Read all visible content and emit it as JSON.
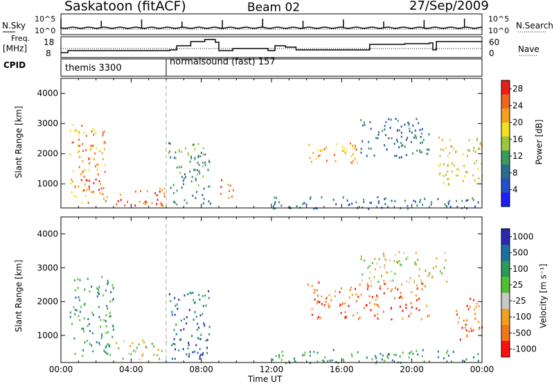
{
  "header": {
    "site": "Saskatoon (fitACF)",
    "beam": "Beam 02",
    "date": "27/Sep/2009"
  },
  "top_panels": {
    "nsky_label": "N.Sky",
    "nsearch_label": "N.Search",
    "nsky_ticks": [
      "10^5",
      "10^0"
    ],
    "nsearch_ticks": [
      "10^5",
      "10^0"
    ],
    "freq_label_1": "Freq.",
    "freq_label_2": "[MHz]",
    "freq_ticks": [
      "18",
      "8"
    ],
    "nave_label": "Nave",
    "nave_ticks": [
      "60",
      "0"
    ],
    "cpid_label": "CPID",
    "cpid_modes": [
      {
        "name": "themis 3300",
        "start": 0
      },
      {
        "name": "normalsound (fast) 157",
        "start": 6
      }
    ]
  },
  "chart_data": [
    {
      "type": "heatmap",
      "title": "",
      "xlabel": "",
      "ylabel": "Slant Range [km]",
      "xlim": [
        0,
        24
      ],
      "ylim": [
        200,
        4500
      ],
      "yticks": [
        "1000",
        "2000",
        "3000",
        "4000"
      ],
      "colorbar_label": "Power [dB]",
      "colorbar_ticks": [
        "4",
        "8",
        "12",
        "16",
        "20",
        "24",
        "28"
      ],
      "colorbar_range": [
        0,
        30
      ],
      "colors": [
        "#1e1ef5",
        "#2450c8",
        "#2a6e8c",
        "#3a9a5c",
        "#9ac83c",
        "#f0e020",
        "#f5a020",
        "#f06420",
        "#e82018"
      ],
      "regions": [
        {
          "t0": 0.5,
          "t1": 2.6,
          "r0": 400,
          "r1": 3000,
          "value": 20
        },
        {
          "t0": 1.0,
          "t1": 2.3,
          "r0": 700,
          "r1": 1200,
          "value": 28
        },
        {
          "t0": 3.0,
          "t1": 6.0,
          "r0": 300,
          "r1": 900,
          "value": 26
        },
        {
          "t0": 6.1,
          "t1": 8.5,
          "r0": 300,
          "r1": 2400,
          "value": 12
        },
        {
          "t0": 9.0,
          "t1": 9.8,
          "r0": 500,
          "r1": 1200,
          "value": 24
        },
        {
          "t0": 12.0,
          "t1": 23.8,
          "r0": 200,
          "r1": 600,
          "value": 8
        },
        {
          "t0": 14.0,
          "t1": 17.0,
          "r0": 1700,
          "r1": 2400,
          "value": 22
        },
        {
          "t0": 17.0,
          "t1": 21.0,
          "r0": 1900,
          "r1": 3200,
          "value": 8
        },
        {
          "t0": 21.5,
          "t1": 24.0,
          "r0": 1000,
          "r1": 2600,
          "value": 18
        }
      ]
    },
    {
      "type": "heatmap",
      "title": "",
      "xlabel": "Time UT",
      "ylabel": "Slant Range [km]",
      "xlim": [
        0,
        24
      ],
      "ylim": [
        200,
        4500
      ],
      "xticks": [
        "00:00",
        "04:00",
        "08:00",
        "12:00",
        "16:00",
        "20:00",
        "00:00"
      ],
      "yticks": [
        "1000",
        "2000",
        "3000",
        "4000"
      ],
      "colorbar_label": "Velocity [m s⁻¹]",
      "colorbar_ticks": [
        "1000",
        "500",
        "100",
        "25",
        "-25",
        "-100",
        "-500",
        "-1000"
      ],
      "colors": [
        "#2a2ab0",
        "#1e6ea0",
        "#2a9a5a",
        "#50c030",
        "#c8c8c8",
        "#f0a020",
        "#f07818",
        "#ff1010"
      ],
      "regions": [
        {
          "t0": 0.5,
          "t1": 3.0,
          "r0": 400,
          "r1": 2800,
          "value": 100
        },
        {
          "t0": 3.0,
          "t1": 6.0,
          "r0": 300,
          "r1": 900,
          "value": -25
        },
        {
          "t0": 6.1,
          "t1": 8.5,
          "r0": 300,
          "r1": 2400,
          "value": 500
        },
        {
          "t0": 12.0,
          "t1": 23.8,
          "r0": 200,
          "r1": 600,
          "value": 100
        },
        {
          "t0": 14.0,
          "t1": 21.0,
          "r0": 1500,
          "r1": 2600,
          "value": -500
        },
        {
          "t0": 17.0,
          "t1": 22.0,
          "r0": 2600,
          "r1": 3500,
          "value": -25
        },
        {
          "t0": 22.5,
          "t1": 24.0,
          "r0": 900,
          "r1": 2200,
          "value": -500
        }
      ]
    }
  ]
}
